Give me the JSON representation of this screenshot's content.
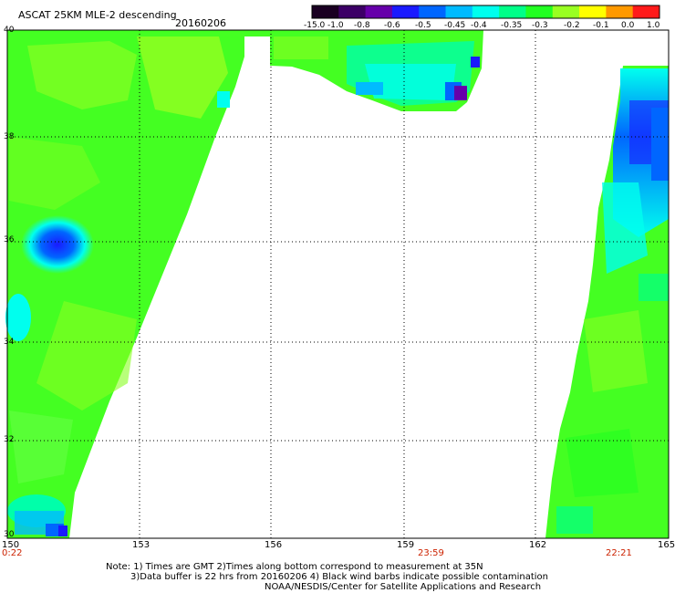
{
  "header": {
    "title": "ASCAT 25KM MLE-2 descending",
    "date": "20160206"
  },
  "colorbar": {
    "labels": [
      "-15.0",
      "-1.0",
      "-0.8",
      "-0.6",
      "-0.5",
      "-0.45",
      "-0.4",
      "-0.35",
      "-0.3",
      "-0.2",
      "-0.1",
      "0.0",
      "1.0"
    ],
    "colors": [
      "#1a0022",
      "#3c0066",
      "#6600aa",
      "#1a1aff",
      "#0066ff",
      "#00bbff",
      "#00ffee",
      "#00ff88",
      "#22ff22",
      "#99ff22",
      "#ffff00",
      "#ff9900",
      "#ff1a1a"
    ]
  },
  "axes": {
    "lon_labels": [
      "150",
      "153",
      "156",
      "159",
      "162",
      "165"
    ],
    "lat_labels": [
      "40",
      "38",
      "36",
      "34",
      "32",
      "30"
    ]
  },
  "times": {
    "left": "0:22",
    "middle": "23:59",
    "right": "22:21"
  },
  "notes": {
    "line1": "Note: 1) Times are GMT 2)Times along bottom correspond to measurement at 35N",
    "line2": "3)Data buffer is 22 hrs from 20160206 4) Black wind barbs indicate possible contamination",
    "line3": "NOAA/NESDIS/Center for Satellite Applications and Research"
  }
}
